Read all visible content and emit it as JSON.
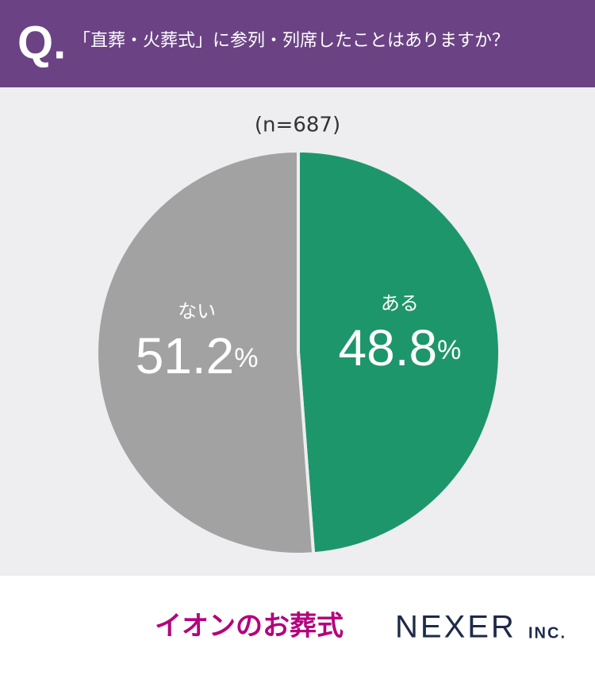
{
  "header": {
    "q": "Q.",
    "title": "「直葬・火葬式」に参列・列席したことはありますか？"
  },
  "chart_data": {
    "type": "pie",
    "subtitle": "(n=687)",
    "categories": [
      "ある",
      "ない"
    ],
    "values": [
      48.8,
      51.2
    ],
    "value_labels": [
      "48.8%",
      "51.2%"
    ],
    "colors": [
      "#1e966b",
      "#a2a2a2"
    ]
  },
  "footer": {
    "brand": "イオンのお葬式",
    "company": "NEXER",
    "company_suffix": "INC."
  }
}
